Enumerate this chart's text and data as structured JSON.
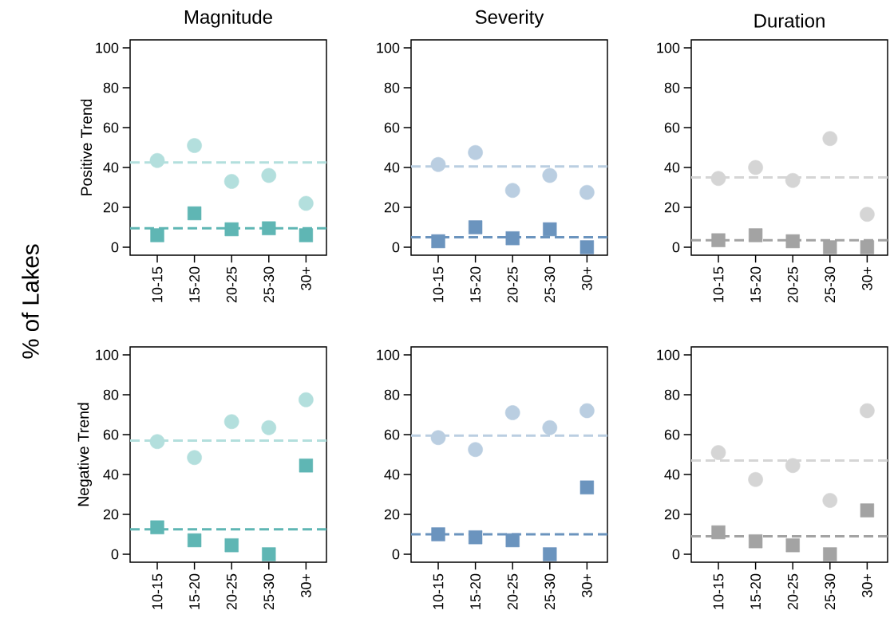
{
  "chart_data": [
    {
      "type": "scatter",
      "title": "Magnitude",
      "ylabel": "Positive Trend",
      "annotations": [
        "% of Lakes"
      ],
      "categories": [
        "10-15",
        "15-20",
        "20-25",
        "25-30",
        "30+"
      ],
      "ylim": [
        -4,
        104
      ],
      "yticks": [
        0,
        20,
        40,
        60,
        80,
        100
      ],
      "series": [
        {
          "color": "#b3dfdd",
          "marker": "circle",
          "values": [
            43.5,
            51,
            33,
            36,
            22
          ]
        },
        {
          "color": "#5fb6b4",
          "marker": "square",
          "values": [
            6,
            17,
            9,
            9.5,
            6
          ]
        }
      ],
      "ref_lines": [
        {
          "axis": "y",
          "value": 42.5,
          "color": "#b3dfdd",
          "line_style": "dashed"
        },
        {
          "axis": "y",
          "value": 9.5,
          "color": "#5fb6b4",
          "line_style": "dashed"
        }
      ]
    },
    {
      "type": "scatter",
      "title": "Severity",
      "categories": [
        "10-15",
        "15-20",
        "20-25",
        "25-30",
        "30+"
      ],
      "ylim": [
        -4,
        104
      ],
      "yticks": [
        0,
        20,
        40,
        60,
        80,
        100
      ],
      "series": [
        {
          "color": "#bacee1",
          "marker": "circle",
          "values": [
            41.5,
            47.5,
            28.5,
            36,
            27.5
          ]
        },
        {
          "color": "#6b94be",
          "marker": "square",
          "values": [
            3,
            10,
            4.5,
            9,
            0
          ]
        }
      ],
      "ref_lines": [
        {
          "axis": "y",
          "value": 40.5,
          "color": "#bacee1",
          "line_style": "dashed"
        },
        {
          "axis": "y",
          "value": 5,
          "color": "#6b94be",
          "line_style": "dashed"
        }
      ]
    },
    {
      "type": "scatter",
      "title": "Duration",
      "categories": [
        "10-15",
        "15-20",
        "20-25",
        "25-30",
        "30+"
      ],
      "ylim": [
        -4,
        104
      ],
      "yticks": [
        0,
        20,
        40,
        60,
        80,
        100
      ],
      "series": [
        {
          "color": "#d5d5d5",
          "marker": "circle",
          "values": [
            34.5,
            40,
            33.5,
            54.5,
            16.5
          ]
        },
        {
          "color": "#a3a3a3",
          "marker": "square",
          "values": [
            3.5,
            6,
            3,
            0,
            0
          ]
        }
      ],
      "ref_lines": [
        {
          "axis": "y",
          "value": 35,
          "color": "#d5d5d5",
          "line_style": "dashed"
        },
        {
          "axis": "y",
          "value": 3.5,
          "color": "#a3a3a3",
          "line_style": "dashed"
        }
      ]
    },
    {
      "type": "scatter",
      "ylabel": "Negative Trend",
      "categories": [
        "10-15",
        "15-20",
        "20-25",
        "25-30",
        "30+"
      ],
      "ylim": [
        -4,
        104
      ],
      "yticks": [
        0,
        20,
        40,
        60,
        80,
        100
      ],
      "series": [
        {
          "color": "#b3dfdd",
          "marker": "circle",
          "values": [
            56.5,
            48.5,
            66.5,
            63.5,
            77.5
          ]
        },
        {
          "color": "#5fb6b4",
          "marker": "square",
          "values": [
            13.5,
            7,
            4.5,
            0,
            44.5
          ]
        }
      ],
      "ref_lines": [
        {
          "axis": "y",
          "value": 57,
          "color": "#b3dfdd",
          "line_style": "dashed"
        },
        {
          "axis": "y",
          "value": 12.5,
          "color": "#5fb6b4",
          "line_style": "dashed"
        }
      ]
    },
    {
      "type": "scatter",
      "categories": [
        "10-15",
        "15-20",
        "20-25",
        "25-30",
        "30+"
      ],
      "ylim": [
        -4,
        104
      ],
      "yticks": [
        0,
        20,
        40,
        60,
        80,
        100
      ],
      "series": [
        {
          "color": "#bacee1",
          "marker": "circle",
          "values": [
            58.5,
            52.5,
            71,
            63.5,
            72
          ]
        },
        {
          "color": "#6b94be",
          "marker": "square",
          "values": [
            10,
            8.5,
            7,
            0,
            33.5
          ]
        }
      ],
      "ref_lines": [
        {
          "axis": "y",
          "value": 59.5,
          "color": "#bacee1",
          "line_style": "dashed"
        },
        {
          "axis": "y",
          "value": 10,
          "color": "#6b94be",
          "line_style": "dashed"
        }
      ]
    },
    {
      "type": "scatter",
      "categories": [
        "10-15",
        "15-20",
        "20-25",
        "25-30",
        "30+"
      ],
      "ylim": [
        -4,
        104
      ],
      "yticks": [
        0,
        20,
        40,
        60,
        80,
        100
      ],
      "series": [
        {
          "color": "#d5d5d5",
          "marker": "circle",
          "values": [
            51,
            37.5,
            44.5,
            27,
            72
          ]
        },
        {
          "color": "#a3a3a3",
          "marker": "square",
          "values": [
            11,
            6.5,
            4.5,
            0,
            22
          ]
        }
      ],
      "ref_lines": [
        {
          "axis": "y",
          "value": 47,
          "color": "#d5d5d5",
          "line_style": "dashed"
        },
        {
          "axis": "y",
          "value": 9,
          "color": "#a3a3a3",
          "line_style": "dashed"
        }
      ]
    }
  ]
}
